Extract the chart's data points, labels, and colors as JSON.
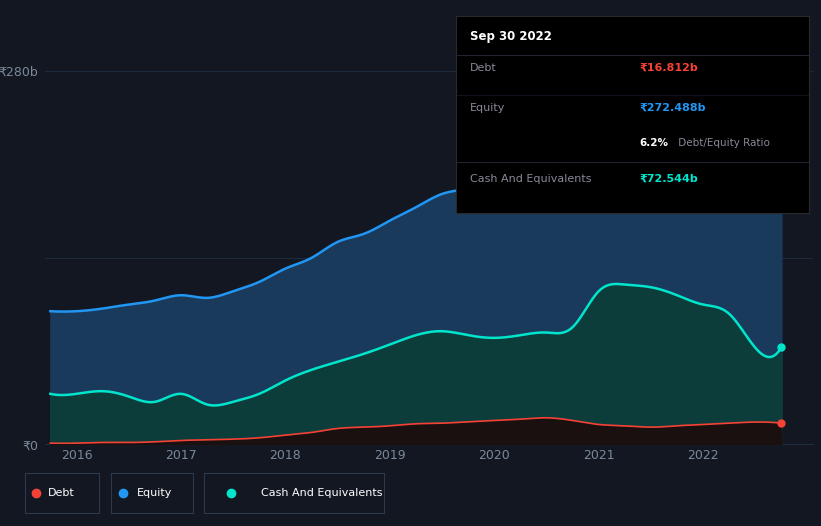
{
  "background_color": "#131722",
  "plot_bg_color": "#131722",
  "y_label_top": "₹280b",
  "y_label_bottom": "₹0",
  "x_ticks": [
    2016,
    2017,
    2018,
    2019,
    2020,
    2021,
    2022
  ],
  "ylim": [
    0,
    300
  ],
  "equity_color": "#2196f3",
  "equity_fill": "#1a3a5c",
  "cash_color": "#00e5cc",
  "cash_fill": "#0d3d3a",
  "debt_color": "#f44336",
  "debt_fill": "#1a1010",
  "equity_values": [
    [
      2015.75,
      100
    ],
    [
      2016.0,
      100
    ],
    [
      2016.25,
      102
    ],
    [
      2016.5,
      105
    ],
    [
      2016.75,
      108
    ],
    [
      2017.0,
      112
    ],
    [
      2017.25,
      110
    ],
    [
      2017.5,
      115
    ],
    [
      2017.75,
      122
    ],
    [
      2018.0,
      132
    ],
    [
      2018.25,
      140
    ],
    [
      2018.5,
      152
    ],
    [
      2018.75,
      158
    ],
    [
      2019.0,
      168
    ],
    [
      2019.25,
      178
    ],
    [
      2019.5,
      188
    ],
    [
      2019.75,
      192
    ],
    [
      2020.0,
      198
    ],
    [
      2020.25,
      205
    ],
    [
      2020.5,
      210
    ],
    [
      2020.75,
      215
    ],
    [
      2021.0,
      222
    ],
    [
      2021.25,
      232
    ],
    [
      2021.5,
      240
    ],
    [
      2021.75,
      248
    ],
    [
      2022.0,
      255
    ],
    [
      2022.25,
      262
    ],
    [
      2022.5,
      272.488
    ],
    [
      2022.75,
      275
    ]
  ],
  "cash_values": [
    [
      2015.75,
      38
    ],
    [
      2016.0,
      38
    ],
    [
      2016.25,
      40
    ],
    [
      2016.5,
      36
    ],
    [
      2016.75,
      32
    ],
    [
      2017.0,
      38
    ],
    [
      2017.25,
      30
    ],
    [
      2017.5,
      32
    ],
    [
      2017.75,
      38
    ],
    [
      2018.0,
      48
    ],
    [
      2018.25,
      56
    ],
    [
      2018.5,
      62
    ],
    [
      2018.75,
      68
    ],
    [
      2019.0,
      75
    ],
    [
      2019.25,
      82
    ],
    [
      2019.5,
      85
    ],
    [
      2019.75,
      82
    ],
    [
      2020.0,
      80
    ],
    [
      2020.25,
      82
    ],
    [
      2020.5,
      84
    ],
    [
      2020.75,
      88
    ],
    [
      2021.0,
      115
    ],
    [
      2021.25,
      120
    ],
    [
      2021.5,
      118
    ],
    [
      2021.75,
      112
    ],
    [
      2022.0,
      105
    ],
    [
      2022.25,
      98
    ],
    [
      2022.5,
      72.544
    ],
    [
      2022.75,
      73
    ]
  ],
  "debt_values": [
    [
      2015.75,
      1
    ],
    [
      2016.0,
      1
    ],
    [
      2016.25,
      1.5
    ],
    [
      2016.5,
      1.5
    ],
    [
      2016.75,
      2
    ],
    [
      2017.0,
      3
    ],
    [
      2017.25,
      3.5
    ],
    [
      2017.5,
      4
    ],
    [
      2017.75,
      5
    ],
    [
      2018.0,
      7
    ],
    [
      2018.25,
      9
    ],
    [
      2018.5,
      12
    ],
    [
      2018.75,
      13
    ],
    [
      2019.0,
      14
    ],
    [
      2019.25,
      15.5
    ],
    [
      2019.5,
      16
    ],
    [
      2019.75,
      17
    ],
    [
      2020.0,
      18
    ],
    [
      2020.25,
      19
    ],
    [
      2020.5,
      20
    ],
    [
      2020.75,
      18
    ],
    [
      2021.0,
      15
    ],
    [
      2021.25,
      14
    ],
    [
      2021.5,
      13
    ],
    [
      2021.75,
      14
    ],
    [
      2022.0,
      15
    ],
    [
      2022.25,
      16
    ],
    [
      2022.5,
      16.812
    ],
    [
      2022.75,
      16
    ]
  ],
  "legend_items": [
    {
      "label": "Debt",
      "color": "#f44336"
    },
    {
      "label": "Equity",
      "color": "#2196f3"
    },
    {
      "label": "Cash And Equivalents",
      "color": "#00e5cc"
    }
  ],
  "tooltip": {
    "date": "Sep 30 2022",
    "debt_label": "Debt",
    "debt_value": "₹16.812b",
    "equity_label": "Equity",
    "equity_value": "₹272.488b",
    "ratio_bold": "6.2%",
    "ratio_rest": " Debt/Equity Ratio",
    "cash_label": "Cash And Equivalents",
    "cash_value": "₹72.544b"
  },
  "grid_color": "#1e2d3d",
  "tick_color": "#7a8a9a"
}
